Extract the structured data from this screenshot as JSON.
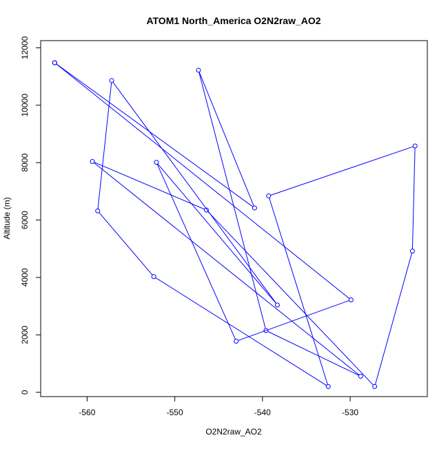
{
  "chart_data": {
    "type": "line",
    "title": "ATOM1 North_America O2N2raw_AO2",
    "xlabel": "O2N2raw_AO2",
    "ylabel": "Altitude (m)",
    "xlim": [
      -565.3,
      -521.2
    ],
    "ylim": [
      -150,
      12250
    ],
    "xticks": [
      -560,
      -550,
      -540,
      -530
    ],
    "yticks": [
      0,
      2000,
      4000,
      6000,
      8000,
      10000,
      12000
    ],
    "grid": false,
    "series_color": "#0000ff",
    "marker": "open-circle",
    "points": [
      {
        "x": -563.7,
        "y": 11480
      },
      {
        "x": -540.9,
        "y": 6420
      },
      {
        "x": -547.3,
        "y": 11220
      },
      {
        "x": -539.6,
        "y": 2150
      },
      {
        "x": -528.8,
        "y": 560
      },
      {
        "x": -559.4,
        "y": 8040
      },
      {
        "x": -546.4,
        "y": 6350
      },
      {
        "x": -527.2,
        "y": 200
      },
      {
        "x": -522.9,
        "y": 4920
      },
      {
        "x": -522.6,
        "y": 8580
      },
      {
        "x": -539.3,
        "y": 6840
      },
      {
        "x": -532.5,
        "y": 200
      },
      {
        "x": -552.4,
        "y": 4030
      },
      {
        "x": -558.8,
        "y": 6320
      },
      {
        "x": -557.2,
        "y": 10860
      },
      {
        "x": -538.3,
        "y": 3040
      },
      {
        "x": -552.1,
        "y": 8010
      },
      {
        "x": -543.0,
        "y": 1780
      },
      {
        "x": -529.9,
        "y": 3220
      },
      {
        "x": -563.7,
        "y": 11480
      }
    ]
  }
}
